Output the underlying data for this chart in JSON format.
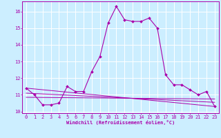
{
  "xlabel": "Windchill (Refroidissement éolien,°C)",
  "background_color": "#cceeff",
  "grid_color": "#ffffff",
  "line_color": "#aa00aa",
  "xlim": [
    -0.5,
    23.5
  ],
  "ylim": [
    9.9,
    16.6
  ],
  "yticks": [
    10,
    11,
    12,
    13,
    14,
    15,
    16
  ],
  "xticks": [
    0,
    1,
    2,
    3,
    4,
    5,
    6,
    7,
    8,
    9,
    10,
    11,
    12,
    13,
    14,
    15,
    16,
    17,
    18,
    19,
    20,
    21,
    22,
    23
  ],
  "main_curve": {
    "x": [
      0,
      1,
      2,
      3,
      4,
      5,
      6,
      7,
      8,
      9,
      10,
      11,
      12,
      13,
      14,
      15,
      16,
      17,
      18,
      19,
      20,
      21,
      22,
      23
    ],
    "y": [
      11.4,
      11.0,
      10.4,
      10.4,
      10.5,
      11.5,
      11.2,
      11.2,
      12.4,
      13.3,
      15.3,
      16.3,
      15.5,
      15.4,
      15.4,
      15.6,
      15.0,
      12.2,
      11.6,
      11.6,
      11.3,
      11.0,
      11.2,
      10.3
    ]
  },
  "aux_curves": [
    {
      "x": [
        0,
        23
      ],
      "y": [
        11.4,
        10.3
      ]
    },
    {
      "x": [
        0,
        23
      ],
      "y": [
        11.1,
        10.55
      ]
    },
    {
      "x": [
        0,
        23
      ],
      "y": [
        10.85,
        10.75
      ]
    }
  ]
}
